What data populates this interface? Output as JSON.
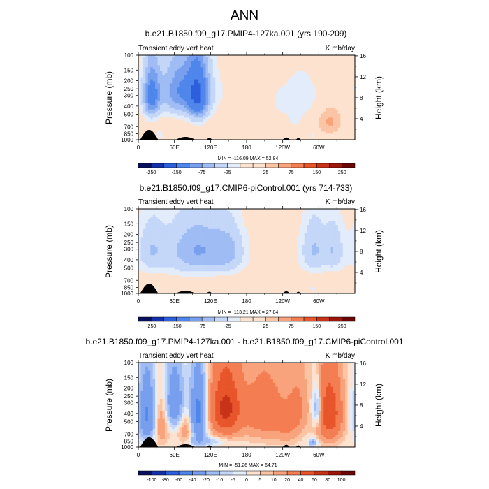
{
  "figure": {
    "title": "ANN",
    "y_axis_label": "Pressure (mb)",
    "y2_axis_label": "Height (km)",
    "pressure_ticks": [
      "100",
      "150",
      "200",
      "250",
      "300",
      "400",
      "500",
      "700",
      "850",
      "1000"
    ],
    "height_ticks": [
      "16",
      "12",
      "8",
      "4"
    ],
    "longitude_ticks": [
      "0",
      "60E",
      "120E",
      "180",
      "120W",
      "60W"
    ]
  },
  "colors": {
    "ramp": [
      "#08105e",
      "#1432a8",
      "#2c5fdc",
      "#4f86ec",
      "#789fee",
      "#9fbdf4",
      "#c4d7f8",
      "#e2ecfb",
      "#fde2cf",
      "#fbc5a5",
      "#f9a37c",
      "#f47d52",
      "#e8552b",
      "#c83217",
      "#9e1608",
      "#6a0604"
    ],
    "topography": "#000000",
    "frame": "#000000"
  },
  "chart_data": [
    {
      "type": "heatmap",
      "title": "b.e21.B1850.f09_g17.PMIP4-127ka.001 (yrs 190-209)",
      "left_label": "Transient eddy vert heat",
      "right_label": "K mb/day",
      "stats": "MIN = -116.09  MAX =  52.84",
      "xlim": [
        0,
        360
      ],
      "ylim": [
        1000,
        100
      ],
      "levels": [
        -250,
        -200,
        -150,
        -100,
        -75,
        -50,
        -25,
        -10,
        10,
        25,
        50,
        75,
        100,
        150,
        200,
        250
      ],
      "colorbar_labels": [
        "-250",
        "-150",
        "-75",
        "-25",
        "25",
        "75",
        "150",
        "250"
      ],
      "field": {
        "background": 6,
        "features": [
          {
            "lon": 22,
            "p": 300,
            "amp": -110,
            "sx": 10,
            "sp": 160
          },
          {
            "lon": 70,
            "p": 260,
            "amp": -75,
            "sx": 22,
            "sp": 150
          },
          {
            "lon": 100,
            "p": 300,
            "amp": -116,
            "sx": 12,
            "sp": 180
          },
          {
            "lon": 85,
            "p": 270,
            "amp": -35,
            "sx": 42,
            "sp": 170
          },
          {
            "lon": 240,
            "p": 350,
            "amp": -18,
            "sx": 25,
            "sp": 200
          },
          {
            "lon": 262,
            "p": 550,
            "amp": -14,
            "sx": 8,
            "sp": 160
          },
          {
            "lon": 275,
            "p": 300,
            "amp": -16,
            "sx": 15,
            "sp": 160
          },
          {
            "lon": 305,
            "p": 320,
            "amp": -14,
            "sx": 14,
            "sp": 150
          },
          {
            "lon": 35,
            "p": 880,
            "amp": -30,
            "sx": 4,
            "sp": 70
          },
          {
            "lon": 290,
            "p": 880,
            "amp": -25,
            "sx": 4,
            "sp": 70
          },
          {
            "lon": 318,
            "p": 600,
            "amp": 50,
            "sx": 14,
            "sp": 170
          },
          {
            "lon": 345,
            "p": 220,
            "amp": -14,
            "sx": 10,
            "sp": 110
          }
        ]
      }
    },
    {
      "type": "heatmap",
      "title": "b.e21.B1850.f09_g17.CMIP6-piControl.001 (yrs 714-733)",
      "left_label": "Transient eddy vert heat",
      "right_label": "K mb/day",
      "stats": "MIN = -113.21  MAX =  27.84",
      "xlim": [
        0,
        360
      ],
      "ylim": [
        1000,
        100
      ],
      "levels": [
        -250,
        -200,
        -150,
        -100,
        -75,
        -50,
        -25,
        -10,
        10,
        25,
        50,
        75,
        100,
        150,
        200,
        250
      ],
      "colorbar_labels": [
        "-250",
        "-150",
        "-75",
        "-25",
        "25",
        "75",
        "150",
        "250"
      ],
      "field": {
        "background": 8,
        "features": [
          {
            "lon": 90,
            "p": 330,
            "amp": -40,
            "sx": 60,
            "sp": 220
          },
          {
            "lon": 100,
            "p": 300,
            "amp": -45,
            "sx": 30,
            "sp": 150
          },
          {
            "lon": 150,
            "p": 320,
            "amp": -40,
            "sx": 18,
            "sp": 150
          },
          {
            "lon": 22,
            "p": 300,
            "amp": -35,
            "sx": 14,
            "sp": 150
          },
          {
            "lon": 292,
            "p": 300,
            "amp": -40,
            "sx": 14,
            "sp": 160
          },
          {
            "lon": 325,
            "p": 300,
            "amp": -35,
            "sx": 10,
            "sp": 140
          },
          {
            "lon": 300,
            "p": 330,
            "amp": -20,
            "sx": 40,
            "sp": 200
          },
          {
            "lon": 60,
            "p": 800,
            "amp": 12,
            "sx": 30,
            "sp": 60
          },
          {
            "lon": 30,
            "p": 880,
            "amp": -25,
            "sx": 5,
            "sp": 60
          },
          {
            "lon": 290,
            "p": 880,
            "amp": -25,
            "sx": 5,
            "sp": 60
          }
        ]
      }
    },
    {
      "type": "heatmap",
      "title": "b.e21.B1850.f09_g17.PMIP4-127ka.001 - b.e21.B1850.f09_g17.CMIP6-piControl.001",
      "left_label": "Transient eddy vert heat",
      "right_label": "K mb/day",
      "stats": "MIN = -51.26  MAX =  64.71",
      "xlim": [
        0,
        360
      ],
      "ylim": [
        1000,
        100
      ],
      "levels": [
        -100,
        -80,
        -60,
        -40,
        -20,
        -10,
        -5,
        0,
        5,
        10,
        20,
        40,
        60,
        80,
        100
      ],
      "colorbar_labels": [
        "-100",
        "-80",
        "-60",
        "-40",
        "-20",
        "-10",
        "-5",
        "0",
        "5",
        "10",
        "20",
        "40",
        "60",
        "80",
        "100"
      ],
      "field": {
        "background": 2,
        "features": [
          {
            "lon": 15,
            "p": 420,
            "amp": -45,
            "sx": 10,
            "sp": 260
          },
          {
            "lon": 60,
            "p": 300,
            "amp": -40,
            "sx": 12,
            "sp": 180
          },
          {
            "lon": 100,
            "p": 400,
            "amp": -51,
            "sx": 10,
            "sp": 260
          },
          {
            "lon": 38,
            "p": 500,
            "amp": 20,
            "sx": 9,
            "sp": 250
          },
          {
            "lon": 78,
            "p": 600,
            "amp": 18,
            "sx": 9,
            "sp": 250
          },
          {
            "lon": 145,
            "p": 350,
            "amp": 64,
            "sx": 18,
            "sp": 230
          },
          {
            "lon": 210,
            "p": 380,
            "amp": 30,
            "sx": 26,
            "sp": 250
          },
          {
            "lon": 265,
            "p": 330,
            "amp": 18,
            "sx": 12,
            "sp": 200
          },
          {
            "lon": 297,
            "p": 350,
            "amp": -30,
            "sx": 6,
            "sp": 140
          },
          {
            "lon": 318,
            "p": 400,
            "amp": 55,
            "sx": 14,
            "sp": 260
          },
          {
            "lon": 248,
            "p": 600,
            "amp": 12,
            "sx": 14,
            "sp": 200
          },
          {
            "lon": 110,
            "p": 850,
            "amp": -15,
            "sx": 25,
            "sp": 80
          },
          {
            "lon": 290,
            "p": 880,
            "amp": -25,
            "sx": 5,
            "sp": 70
          }
        ]
      }
    }
  ]
}
